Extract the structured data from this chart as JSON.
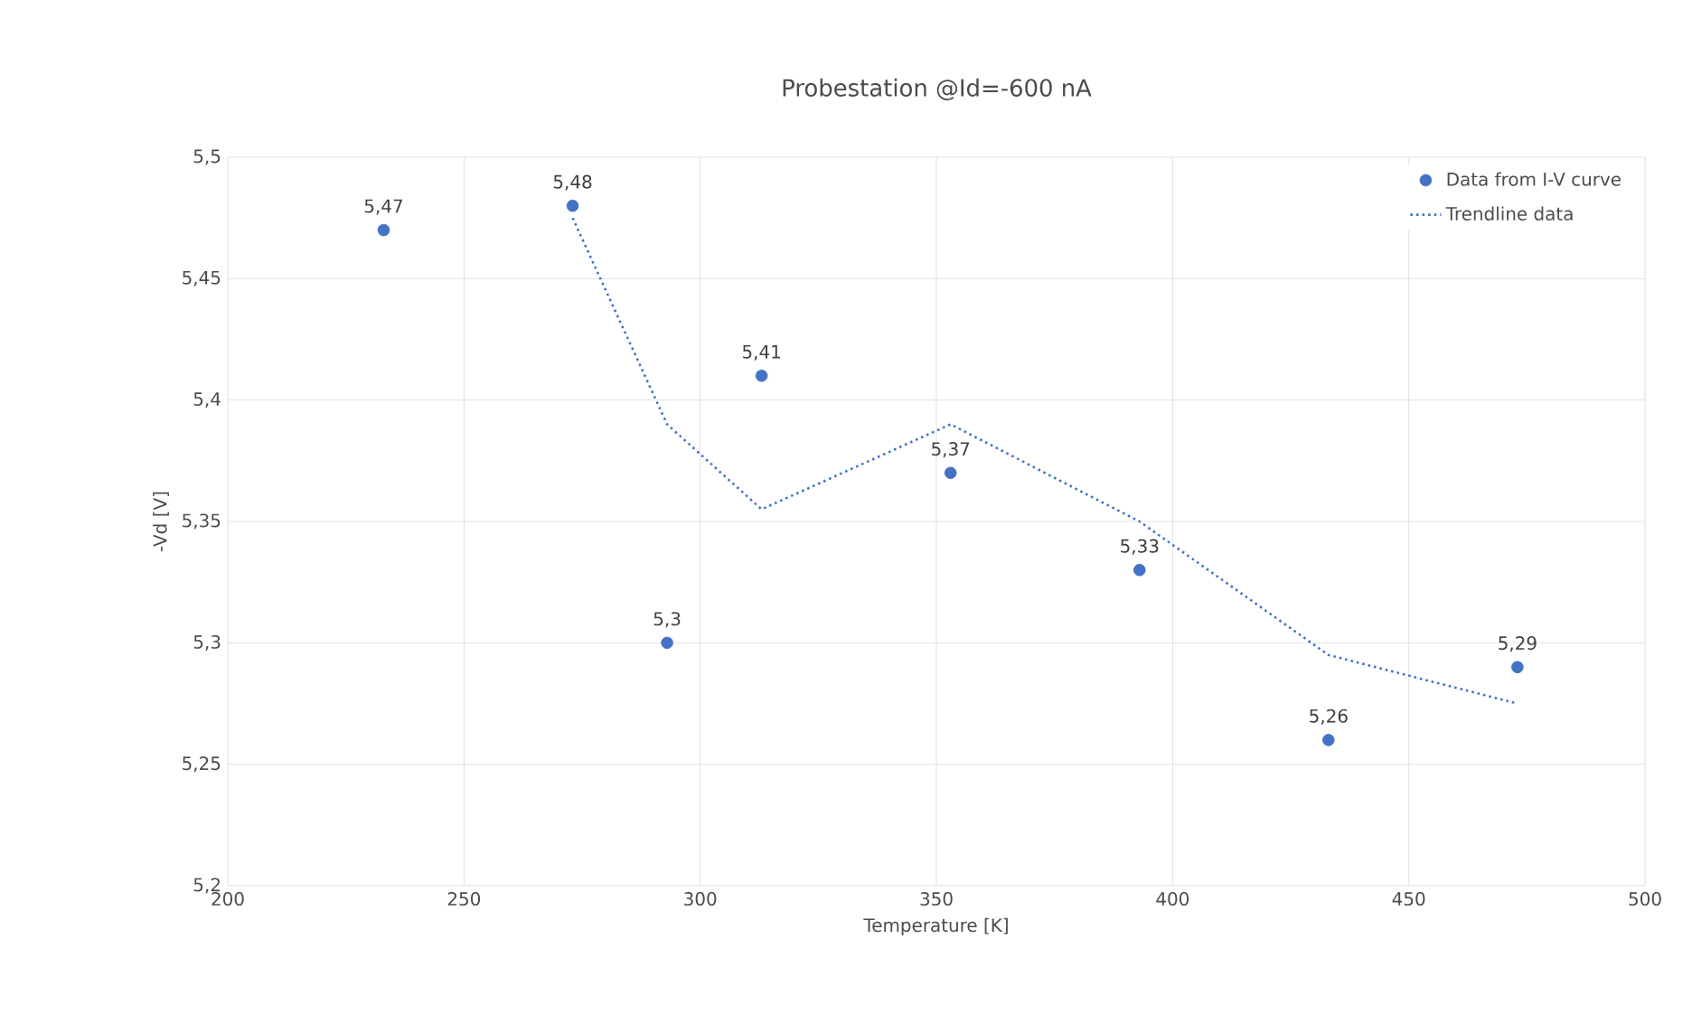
{
  "chart_data": {
    "type": "scatter",
    "title": "Probestation @Id=-600 nA",
    "xlabel": "Temperature  [K]",
    "ylabel": "-Vd [V]",
    "xlim": [
      200,
      500
    ],
    "xticks": [
      200,
      250,
      300,
      350,
      400,
      450,
      500
    ],
    "ylim": [
      5.2,
      5.5
    ],
    "yticks": [
      {
        "value": 5.2,
        "label": "5,2"
      },
      {
        "value": 5.25,
        "label": "5,25"
      },
      {
        "value": 5.3,
        "label": "5,3"
      },
      {
        "value": 5.35,
        "label": "5,35"
      },
      {
        "value": 5.4,
        "label": "5,4"
      },
      {
        "value": 5.45,
        "label": "5,45"
      },
      {
        "value": 5.5,
        "label": "5,5"
      }
    ],
    "grid": true,
    "legend": "top right",
    "series": [
      {
        "name": "Data from I-V curve",
        "color": "#4472c4",
        "marker": "circle",
        "x": [
          233,
          273,
          293,
          313,
          353,
          393,
          433,
          473
        ],
        "values": [
          5.47,
          5.48,
          5.3,
          5.41,
          5.37,
          5.33,
          5.26,
          5.29
        ],
        "value_labels": [
          "5,47",
          "5,48",
          "5,3",
          "5,41",
          "5,37",
          "5,33",
          "5,26",
          "5,29"
        ]
      },
      {
        "name": "Trendline data",
        "type": "line",
        "color": "#4472c4",
        "marker": "none",
        "line_style": "dotted",
        "x": [
          273,
          293,
          313,
          353,
          393,
          433,
          473
        ],
        "values": [
          5.475,
          5.39,
          5.355,
          5.39,
          5.35,
          5.295,
          5.275
        ]
      }
    ]
  }
}
